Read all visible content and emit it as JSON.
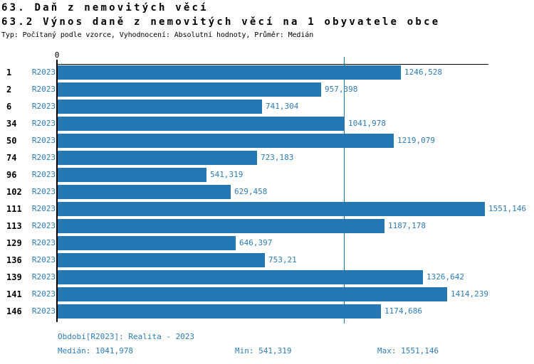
{
  "header": {
    "title": "63. Daň z nemovitých věcí",
    "subtitle": "63.2 Výnos daně z nemovitých věcí na 1 obyvatele obce",
    "meta": "Typ: Počítaný podle vzorce, Vyhodnocení: Absolutní hodnoty, Průměr: Medián"
  },
  "chart": {
    "zero_label": "0"
  },
  "chart_data": {
    "type": "bar",
    "orientation": "horizontal",
    "title": "63.2 Výnos daně z nemovitých věcí na 1 obyvatele obce",
    "categories": [
      "1",
      "2",
      "6",
      "34",
      "50",
      "74",
      "96",
      "102",
      "111",
      "113",
      "129",
      "136",
      "139",
      "141",
      "146"
    ],
    "series": [
      {
        "name": "R2023",
        "values": [
          1246.528,
          957.398,
          741.304,
          1041.978,
          1219.079,
          723.183,
          541.319,
          629.458,
          1551.146,
          1187.178,
          646.397,
          753.21,
          1326.642,
          1414.239,
          1174.686
        ]
      }
    ],
    "value_labels": [
      "1246,528",
      "957,398",
      "741,304",
      "1041,978",
      "1219,079",
      "723,183",
      "541,319",
      "629,458",
      "1551,146",
      "1187,178",
      "646,397",
      "753,21",
      "1326,642",
      "1414,239",
      "1174,686"
    ],
    "row_series_label": "R2023",
    "xlabel": "",
    "ylabel": "",
    "xlim": [
      0,
      1551.146
    ],
    "axis_tick_labels": [
      "0"
    ],
    "median_line": 1041.978,
    "median": 1041.978,
    "min": 541.319,
    "max": 1551.146,
    "legend": "none",
    "grid": "off"
  },
  "footer": {
    "period": "Období[R2023]: Realita - 2023",
    "median": "Medián: 1041,978",
    "min": "Min: 541,319",
    "max": "Max: 1551,146"
  },
  "colors": {
    "bar": "#2478b4",
    "blue_text": "#2e7cb9",
    "axis": "#000000",
    "background": "#ffffff"
  }
}
